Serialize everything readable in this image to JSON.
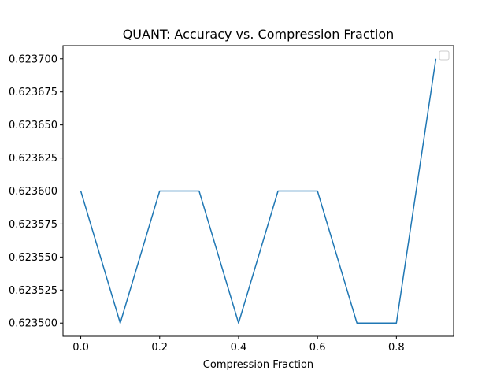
{
  "chart_data": {
    "type": "line",
    "title": "QUANT: Accuracy vs. Compression Fraction",
    "xlabel": "Compression Fraction",
    "ylabel": "",
    "xlim": [
      -0.045,
      0.945
    ],
    "ylim": [
      0.62349,
      0.62371
    ],
    "x_ticks": [
      0.0,
      0.2,
      0.4,
      0.6,
      0.8
    ],
    "x_tick_labels": [
      "0.0",
      "0.2",
      "0.4",
      "0.6",
      "0.8"
    ],
    "y_ticks": [
      0.6235,
      0.623525,
      0.62355,
      0.623575,
      0.6236,
      0.623625,
      0.62365,
      0.623675,
      0.6237
    ],
    "y_tick_labels": [
      "0.623500",
      "0.623525",
      "0.623550",
      "0.623575",
      "0.623600",
      "0.623625",
      "0.623650",
      "0.623675",
      "0.623700"
    ],
    "grid": false,
    "legend": "upper-right (empty)",
    "series": [
      {
        "color": "#1f77b4",
        "x": [
          0.0,
          0.1,
          0.2,
          0.3,
          0.4,
          0.5,
          0.6,
          0.7,
          0.8,
          0.9
        ],
        "y": [
          0.6236,
          0.6235,
          0.6236,
          0.6236,
          0.6235,
          0.6236,
          0.6236,
          0.6235,
          0.6235,
          0.6237
        ]
      }
    ]
  }
}
